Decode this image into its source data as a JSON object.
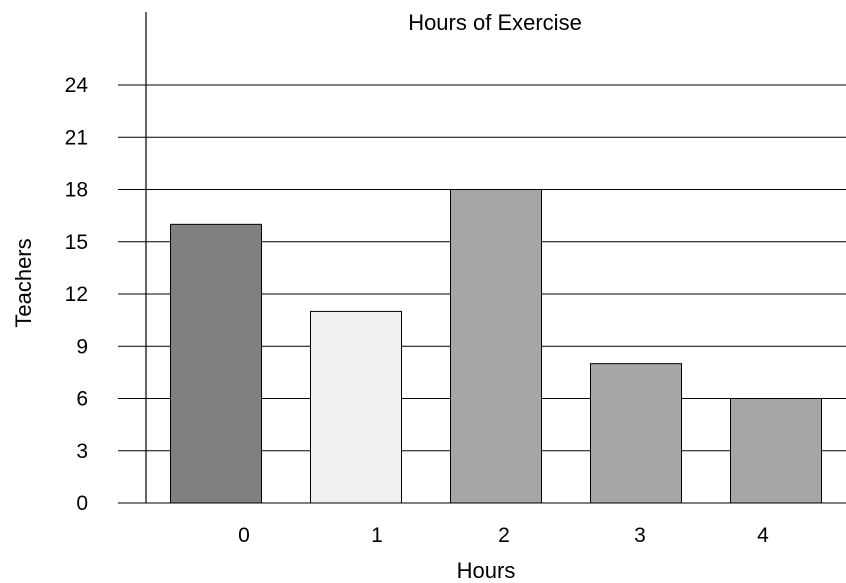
{
  "chart_data": {
    "type": "bar",
    "title": "Hours of Exercise",
    "xlabel": "Hours",
    "ylabel": "Teachers",
    "categories": [
      "0",
      "1",
      "2",
      "3",
      "4"
    ],
    "values": [
      16,
      11,
      18,
      8,
      6
    ],
    "ylim": [
      0,
      24
    ],
    "yticks": [
      "0",
      "3",
      "6",
      "9",
      "12",
      "15",
      "18",
      "21",
      "24"
    ],
    "grid": true,
    "bar_colors": [
      "#808080",
      "#f0f0f0",
      "#a6a6a6",
      "#a6a6a6",
      "#a6a6a6"
    ]
  }
}
